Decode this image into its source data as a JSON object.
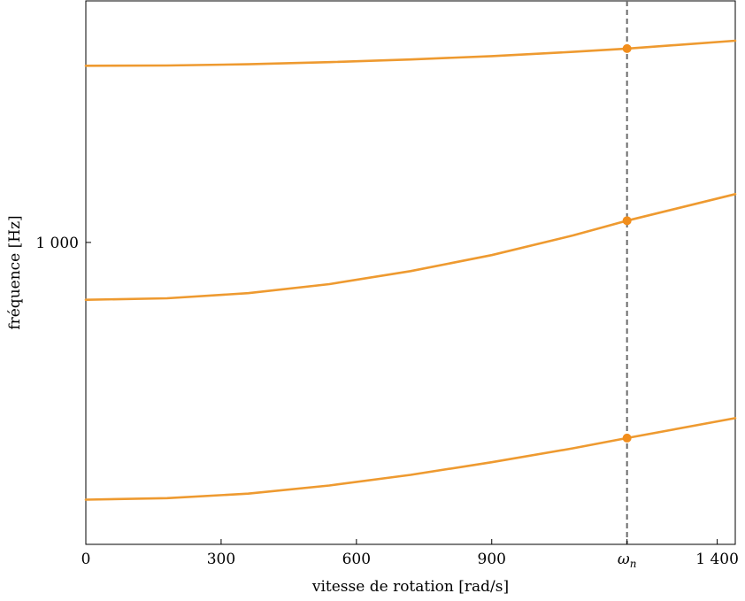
{
  "chart_data": {
    "type": "line",
    "xlabel": "vitesse de rotation [rad/s]",
    "ylabel": "fréquence [Hz]",
    "xlim": [
      0,
      1440
    ],
    "ylim": [
      0,
      1800
    ],
    "log_y": false,
    "grid": false,
    "x_ticks": [
      {
        "value": 0,
        "label": "0"
      },
      {
        "value": 300,
        "label": "300"
      },
      {
        "value": 600,
        "label": "600"
      },
      {
        "value": 900,
        "label": "900"
      },
      {
        "value": 1200,
        "label": "ωn"
      },
      {
        "value": 1400,
        "label": "1 400"
      }
    ],
    "y_ticks": [
      {
        "value": 1000,
        "label": "1 000"
      }
    ],
    "reference_line": {
      "x": 1200,
      "style": "dashed",
      "color": "#6b6b6b"
    },
    "line_color": "#ee9a30",
    "series": [
      {
        "x": [
          0,
          180,
          360,
          540,
          720,
          900,
          1080,
          1200,
          1440
        ],
        "values": [
          148,
          153,
          168,
          195,
          230,
          272,
          318,
          352,
          418
        ],
        "marker": {
          "x": 1200,
          "y": 352
        }
      },
      {
        "x": [
          0,
          180,
          360,
          540,
          720,
          900,
          1080,
          1200,
          1440
        ],
        "values": [
          810,
          815,
          832,
          862,
          905,
          958,
          1023,
          1072,
          1160
        ]
      },
      {
        "x": [
          0,
          180,
          360,
          540,
          720,
          900,
          1080,
          1200,
          1440
        ],
        "values": [
          1585,
          1586,
          1590,
          1597,
          1606,
          1617,
          1631,
          1642,
          1668
        ]
      }
    ]
  }
}
